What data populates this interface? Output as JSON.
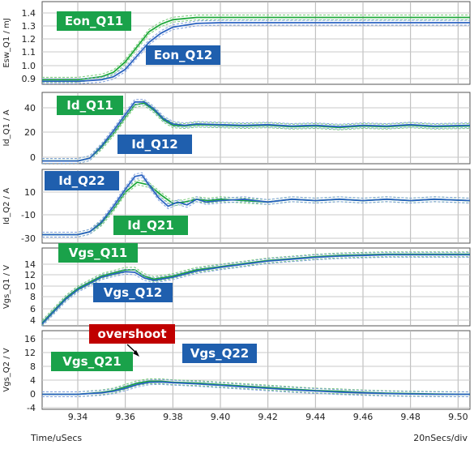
{
  "colors": {
    "green": "#1ea83a",
    "blue": "#2b63c0",
    "green_label": "#1aa24a",
    "blue_label": "#1f5fae",
    "red_label": "#c00000",
    "dashed_green": "#78cc78",
    "dashed_blue": "#7f9fdc"
  },
  "footer": {
    "xlabel": "Time/uSecs",
    "scale": "20nSecs/div"
  },
  "chart_data": [
    {
      "type": "line",
      "ylabel": "Esw_Q1 / mJ",
      "yticks": [
        "1.4",
        "1.3",
        "1.2",
        "1.1",
        "1.0",
        "0.9"
      ],
      "ylim": [
        0.9,
        1.45
      ],
      "xlim": [
        9.325,
        9.505
      ],
      "labels": [
        {
          "text": "Eon_Q11",
          "color": "green"
        },
        {
          "text": "Eon_Q12",
          "color": "blue"
        }
      ],
      "series": [
        {
          "name": "Eon_Q11",
          "color": "green",
          "x": [
            9.325,
            9.34,
            9.35,
            9.355,
            9.36,
            9.365,
            9.37,
            9.375,
            9.38,
            9.39,
            9.4,
            9.505
          ],
          "values": [
            0.93,
            0.93,
            0.95,
            0.98,
            1.05,
            1.15,
            1.25,
            1.3,
            1.33,
            1.345,
            1.345,
            1.345
          ]
        },
        {
          "name": "Eon_Q12",
          "color": "blue",
          "x": [
            9.325,
            9.34,
            9.35,
            9.355,
            9.36,
            9.365,
            9.37,
            9.375,
            9.38,
            9.39,
            9.4,
            9.505
          ],
          "values": [
            0.92,
            0.92,
            0.93,
            0.95,
            1.0,
            1.09,
            1.18,
            1.24,
            1.28,
            1.305,
            1.31,
            1.31
          ]
        }
      ]
    },
    {
      "type": "line",
      "ylabel": "Id_Q1 / A",
      "yticks": [
        "40",
        "20",
        "0"
      ],
      "ylim": [
        -2,
        50
      ],
      "xlim": [
        9.325,
        9.505
      ],
      "labels": [
        {
          "text": "Id_Q11",
          "color": "green"
        },
        {
          "text": "Id_Q12",
          "color": "blue"
        }
      ],
      "series": [
        {
          "name": "Id_Q11",
          "color": "green",
          "x": [
            9.325,
            9.34,
            9.345,
            9.35,
            9.355,
            9.36,
            9.364,
            9.368,
            9.372,
            9.376,
            9.38,
            9.385,
            9.39,
            9.4,
            9.41,
            9.42,
            9.43,
            9.44,
            9.45,
            9.46,
            9.47,
            9.48,
            9.49,
            9.505
          ],
          "values": [
            0,
            0,
            2,
            10,
            20,
            32,
            41,
            42,
            37,
            30,
            26,
            25.5,
            26.5,
            26,
            25.5,
            26,
            25,
            25.5,
            24.5,
            25.5,
            25,
            26,
            25,
            25.5
          ]
        },
        {
          "name": "Id_Q12",
          "color": "blue",
          "x": [
            9.325,
            9.34,
            9.345,
            9.35,
            9.355,
            9.36,
            9.364,
            9.368,
            9.372,
            9.376,
            9.38,
            9.385,
            9.39,
            9.4,
            9.41,
            9.42,
            9.43,
            9.44,
            9.45,
            9.46,
            9.47,
            9.48,
            9.49,
            9.505
          ],
          "values": [
            0,
            0,
            2,
            11,
            22,
            34,
            43,
            43,
            38,
            31,
            27,
            26,
            27,
            26.5,
            26,
            26.5,
            25.5,
            26,
            25,
            26,
            25.5,
            26.5,
            25.5,
            26
          ]
        }
      ]
    },
    {
      "type": "line",
      "ylabel": "Id_Q2 / A",
      "yticks": [
        "10",
        "-10",
        "-30"
      ],
      "ylim": [
        -32,
        20
      ],
      "xlim": [
        9.325,
        9.505
      ],
      "labels": [
        {
          "text": "Id_Q22",
          "color": "blue"
        },
        {
          "text": "Id_Q21",
          "color": "green"
        }
      ],
      "series": [
        {
          "name": "Id_Q21",
          "color": "green",
          "x": [
            9.325,
            9.34,
            9.345,
            9.35,
            9.355,
            9.36,
            9.365,
            9.37,
            9.375,
            9.38,
            9.385,
            9.39,
            9.395,
            9.4,
            9.41,
            9.42,
            9.43,
            9.44,
            9.45,
            9.46,
            9.47,
            9.48,
            9.49,
            9.505
          ],
          "values": [
            -26,
            -26,
            -24,
            -18,
            -8,
            4,
            11,
            9,
            2,
            -4,
            -3,
            -1,
            -2,
            -1,
            -2,
            -3,
            -1,
            -2,
            -1,
            -2,
            -1,
            -2,
            -1,
            -2
          ]
        },
        {
          "name": "Id_Q22",
          "color": "blue",
          "x": [
            9.325,
            9.34,
            9.345,
            9.35,
            9.355,
            9.36,
            9.364,
            9.367,
            9.37,
            9.374,
            9.378,
            9.382,
            9.386,
            9.39,
            9.394,
            9.4,
            9.41,
            9.42,
            9.43,
            9.44,
            9.45,
            9.46,
            9.47,
            9.48,
            9.49,
            9.505
          ],
          "values": [
            -26,
            -26,
            -24,
            -17,
            -6,
            6,
            15,
            16,
            9,
            0,
            -6,
            -3,
            -5,
            -1,
            -3,
            -2,
            -1,
            -3,
            -1,
            -2,
            -1,
            -2,
            -1,
            -2,
            -1,
            -2
          ]
        }
      ]
    },
    {
      "type": "line",
      "ylabel": "Vgs_Q1 / V",
      "yticks": [
        "14",
        "12",
        "10",
        "8",
        "6",
        "4"
      ],
      "ylim": [
        2.5,
        15
      ],
      "xlim": [
        9.325,
        9.505
      ],
      "labels": [
        {
          "text": "Vgs_Q11",
          "color": "green"
        },
        {
          "text": "Vgs_Q12",
          "color": "blue"
        }
      ],
      "series": [
        {
          "name": "Vgs_Q11",
          "color": "green",
          "x": [
            9.325,
            9.33,
            9.335,
            9.34,
            9.345,
            9.35,
            9.355,
            9.36,
            9.364,
            9.368,
            9.372,
            9.38,
            9.39,
            9.4,
            9.41,
            9.42,
            9.43,
            9.44,
            9.45,
            9.46,
            9.47,
            9.48,
            9.49,
            9.505
          ],
          "values": [
            3,
            5,
            7,
            8.5,
            9.5,
            10.5,
            11,
            11.5,
            11.5,
            10.5,
            10,
            10.5,
            11.5,
            12,
            12.5,
            13,
            13.3,
            13.6,
            13.8,
            13.9,
            14,
            14,
            14,
            14
          ]
        },
        {
          "name": "Vgs_Q12",
          "color": "blue",
          "x": [
            9.325,
            9.33,
            9.335,
            9.34,
            9.345,
            9.35,
            9.355,
            9.36,
            9.364,
            9.368,
            9.372,
            9.38,
            9.39,
            9.4,
            9.41,
            9.42,
            9.43,
            9.44,
            9.45,
            9.46,
            9.47,
            9.48,
            9.49,
            9.505
          ],
          "values": [
            2.8,
            4.8,
            6.8,
            8.3,
            9.3,
            10.3,
            10.8,
            11.2,
            11.1,
            10.2,
            9.8,
            10.3,
            11.3,
            11.9,
            12.4,
            12.9,
            13.2,
            13.5,
            13.7,
            13.8,
            13.9,
            13.9,
            13.9,
            13.9
          ]
        }
      ]
    },
    {
      "type": "line",
      "ylabel": "Vgs_Q2 / V",
      "yticks": [
        "16",
        "12",
        "8",
        "4",
        "0",
        "-4"
      ],
      "ylim": [
        -4,
        17
      ],
      "xlim": [
        9.325,
        9.505
      ],
      "labels": [
        {
          "text": "overshoot",
          "color": "red"
        },
        {
          "text": "Vgs_Q21",
          "color": "green"
        },
        {
          "text": "Vgs_Q22",
          "color": "blue"
        }
      ],
      "series": [
        {
          "name": "Vgs_Q21",
          "color": "green",
          "x": [
            9.325,
            9.34,
            9.35,
            9.355,
            9.36,
            9.365,
            9.37,
            9.375,
            9.38,
            9.39,
            9.4,
            9.41,
            9.42,
            9.43,
            9.44,
            9.45,
            9.46,
            9.47,
            9.48,
            9.49,
            9.505
          ],
          "values": [
            0,
            0,
            0.5,
            1,
            2,
            3,
            3.5,
            3.5,
            3.2,
            3,
            2.6,
            2.2,
            1.8,
            1.4,
            1,
            0.8,
            0.5,
            0.3,
            0.2,
            0.1,
            0
          ]
        },
        {
          "name": "Vgs_Q22",
          "color": "blue",
          "x": [
            9.325,
            9.34,
            9.35,
            9.355,
            9.36,
            9.365,
            9.37,
            9.375,
            9.38,
            9.39,
            9.4,
            9.41,
            9.42,
            9.43,
            9.44,
            9.45,
            9.46,
            9.47,
            9.48,
            9.49,
            9.505
          ],
          "values": [
            0,
            0,
            0.4,
            0.8,
            1.6,
            2.6,
            3.2,
            3.3,
            3.1,
            2.8,
            2.4,
            2,
            1.6,
            1.2,
            0.9,
            0.6,
            0.4,
            0.2,
            0.1,
            0,
            0
          ]
        }
      ]
    }
  ],
  "x_axis": {
    "ticks": [
      "9.34",
      "9.36",
      "9.38",
      "9.40",
      "9.42",
      "9.44",
      "9.46",
      "9.48",
      "9.50"
    ],
    "tick_values": [
      9.34,
      9.36,
      9.38,
      9.4,
      9.42,
      9.44,
      9.46,
      9.48,
      9.5
    ]
  }
}
